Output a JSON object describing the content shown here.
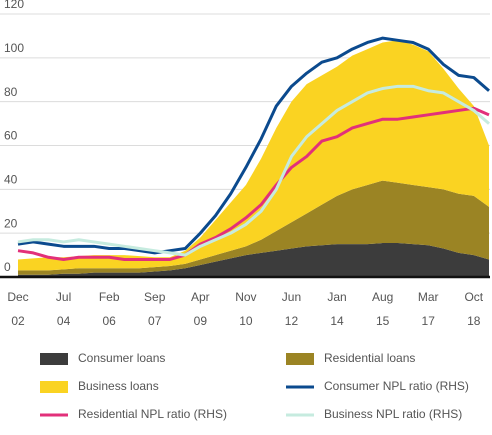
{
  "chart_data": {
    "type": "area",
    "categories": [
      "Dec 02",
      null,
      null,
      "Jul 04",
      null,
      null,
      "Feb 06",
      null,
      null,
      "Sep 07",
      null,
      null,
      "Apr 09",
      null,
      null,
      "Nov 10",
      null,
      null,
      "Jun 12",
      null,
      null,
      "Jan 14",
      null,
      null,
      "Aug 15",
      null,
      null,
      "Mar 17",
      null,
      null,
      "Oct 18",
      null
    ],
    "series": [
      {
        "name": "Consumer loans",
        "type": "area",
        "color": "#3c3c3c",
        "values": [
          1,
          1,
          1,
          1.5,
          1.5,
          2,
          2,
          2,
          2,
          2.5,
          3,
          4,
          5.5,
          7,
          8.5,
          10,
          11,
          12,
          13,
          14,
          14.5,
          15,
          15,
          15,
          15.5,
          15.5,
          15,
          14.5,
          13,
          11,
          10,
          8
        ]
      },
      {
        "name": "Residential loans",
        "type": "area",
        "color": "#9b8424",
        "values": [
          2,
          2,
          2,
          2,
          2.5,
          2,
          2,
          2,
          2,
          2,
          2,
          2,
          2.5,
          3,
          3.5,
          4,
          6,
          9,
          12,
          15,
          18.5,
          22,
          25,
          27,
          28.5,
          27.5,
          27,
          26.5,
          27,
          27,
          27,
          24
        ]
      },
      {
        "name": "Business loans",
        "type": "area",
        "color": "#fad322",
        "values": [
          5,
          5.5,
          6,
          5.5,
          5.5,
          6,
          6,
          6,
          5.5,
          4.5,
          4,
          6,
          10,
          16,
          22,
          28,
          37,
          47,
          55,
          59,
          59,
          59,
          61,
          62,
          63,
          65,
          64,
          62,
          55,
          48,
          41,
          28
        ]
      },
      {
        "name": "Consumer NPL ratio (RHS)",
        "type": "line",
        "color": "#0b4a8e",
        "values": [
          15,
          16,
          15,
          14,
          14,
          14,
          13,
          13,
          12,
          11,
          12,
          13,
          20,
          28,
          38,
          50,
          63,
          78,
          87,
          93,
          98,
          100,
          104,
          107,
          109,
          108,
          107,
          104,
          97,
          92,
          91,
          85
        ]
      },
      {
        "name": "Residential NPL ratio (RHS)",
        "type": "line",
        "color": "#e2307a",
        "values": [
          12,
          11,
          9,
          8,
          9,
          9,
          9,
          8,
          8,
          8,
          8,
          10,
          15,
          18,
          22,
          27,
          33,
          42,
          50,
          55,
          62,
          64,
          68,
          70,
          72,
          72,
          73,
          74,
          75,
          76,
          77,
          74
        ]
      },
      {
        "name": "Business NPL ratio (RHS)",
        "type": "line",
        "color": "#c6ebdf",
        "values": [
          16,
          17,
          17,
          16,
          17,
          16,
          15,
          14,
          13,
          12,
          11,
          10,
          14,
          17,
          20,
          24,
          30,
          40,
          55,
          64,
          70,
          76,
          80,
          84,
          86,
          87,
          87,
          85,
          84,
          80,
          76,
          70
        ]
      }
    ],
    "ylim": [
      0,
      120
    ],
    "yticks": [
      0,
      20,
      40,
      60,
      80,
      100,
      120
    ],
    "grid": true
  }
}
